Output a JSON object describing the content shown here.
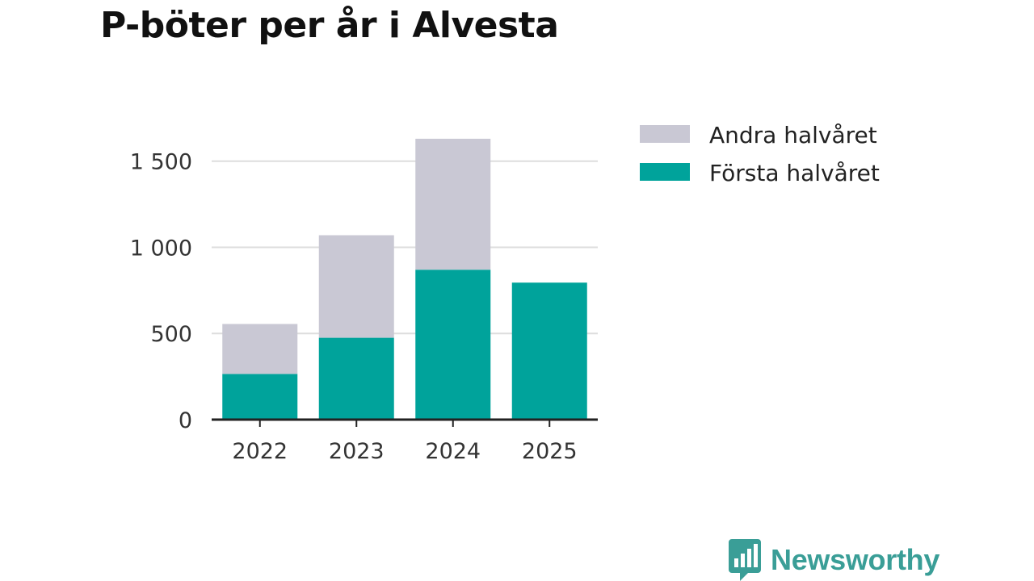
{
  "title": "P-böter per år i Alvesta",
  "brand": {
    "name": "Newsworthy",
    "color": "#3a9e97",
    "icon": "bar-chart-bubble-icon"
  },
  "colors": {
    "first": "#00a39b",
    "second": "#c9c8d4",
    "grid": "#dddddd",
    "axis": "#222222"
  },
  "chart_data": {
    "type": "bar",
    "stacked": true,
    "title": "P-böter per år i Alvesta",
    "categories": [
      "2022",
      "2023",
      "2024",
      "2025"
    ],
    "series": [
      {
        "name": "Första halvåret",
        "values": [
          265,
          475,
          870,
          795
        ]
      },
      {
        "name": "Andra halvåret",
        "values": [
          290,
          595,
          760,
          0
        ]
      }
    ],
    "ylim": [
      0,
      1700
    ],
    "yticks": [
      0,
      500,
      1000,
      1500
    ],
    "ytick_labels": [
      "0",
      "500",
      "1 000",
      "1 500"
    ],
    "legend": [
      "Andra halvåret",
      "Första halvåret"
    ],
    "legend_position": "right",
    "grid": true,
    "xlabel": "",
    "ylabel": ""
  }
}
